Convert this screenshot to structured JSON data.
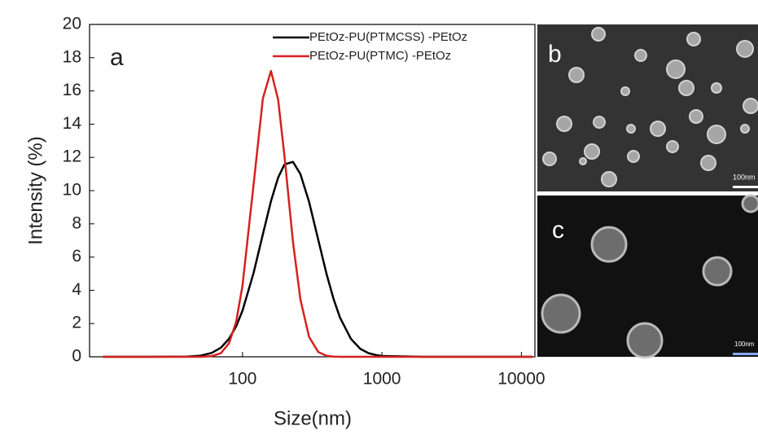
{
  "chart_data": {
    "type": "line",
    "xlabel": "Size(nm)",
    "ylabel": "Intensity (%)",
    "annotation": "a",
    "log_x": true,
    "x": [
      10,
      20,
      40,
      50,
      60,
      70,
      80,
      90,
      100,
      120,
      140,
      160,
      180,
      200,
      230,
      260,
      300,
      350,
      400,
      450,
      500,
      600,
      700,
      800,
      900,
      1000,
      2000,
      5000,
      10000,
      12000
    ],
    "series": [
      {
        "name": "PEtOz-PU(PTMCSS) -PEtOz",
        "color": "#000000",
        "values": [
          0,
          0,
          0.01,
          0.07,
          0.23,
          0.55,
          1.08,
          1.83,
          2.78,
          5.04,
          7.38,
          9.37,
          10.78,
          11.58,
          11.73,
          11.0,
          9.33,
          7.01,
          5.0,
          3.47,
          2.36,
          1.07,
          0.48,
          0.22,
          0.11,
          0.05,
          0,
          0,
          0,
          0
        ]
      },
      {
        "name": "PEtOz-PU(PTMC) -PEtOz",
        "color": "#d62020",
        "values": [
          0,
          0,
          0,
          0,
          0.04,
          0.22,
          0.81,
          2.1,
          4.29,
          10.35,
          15.55,
          17.2,
          15.48,
          12.07,
          6.92,
          3.46,
          1.2,
          0.28,
          0.06,
          0.01,
          0,
          0,
          0,
          0,
          0,
          0,
          0,
          0,
          0,
          0
        ]
      }
    ],
    "xlim": [
      8,
      12500
    ],
    "xticks": [
      100,
      1000,
      10000
    ],
    "ylim": [
      0,
      20
    ],
    "yticks": [
      0,
      2,
      4,
      6,
      8,
      10,
      12,
      14,
      16,
      18,
      20
    ],
    "legend": "upper right"
  },
  "images": [
    {
      "label": "b",
      "scale": "100nm"
    },
    {
      "label": "c",
      "scale": "100nm"
    }
  ]
}
